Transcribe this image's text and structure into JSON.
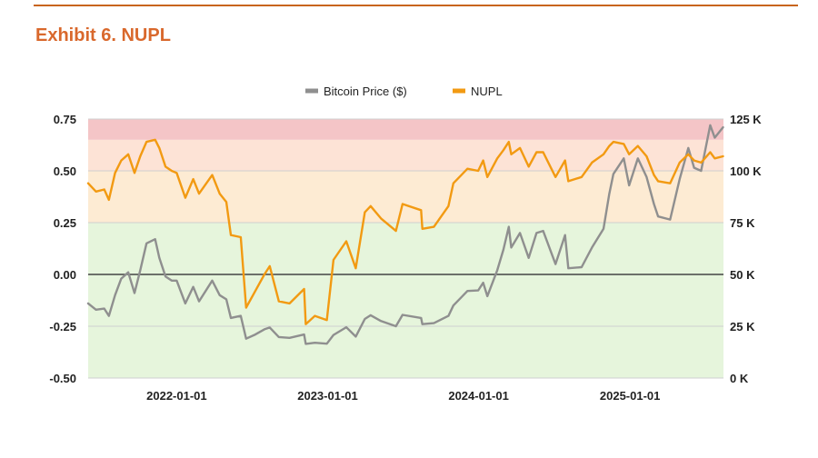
{
  "header": {
    "title": "Exhibit 6. NUPL",
    "accent_color": "#d9682c"
  },
  "chart_data": {
    "type": "line",
    "title": "",
    "xlabel": "",
    "ylabel_left": "",
    "ylabel_right": "",
    "x_ticks": [
      "2022-01-01",
      "2023-01-01",
      "2024-01-01",
      "2025-01-01"
    ],
    "xlim": [
      "2021-06-01",
      "2025-08-15"
    ],
    "y_left": {
      "range": [
        -0.5,
        0.75
      ],
      "ticks": [
        "0.75",
        "0.50",
        "0.25",
        "0.00",
        "-0.25",
        "-0.50"
      ]
    },
    "y_right": {
      "range": [
        0,
        125000
      ],
      "ticks": [
        "125 K",
        "100 K",
        "75 K",
        "50 K",
        "25 K",
        "0 K"
      ]
    },
    "bands": [
      {
        "from": -0.5,
        "to": 0.25,
        "color": "#e6f5dc"
      },
      {
        "from": 0.25,
        "to": 0.5,
        "color": "#fdebd3"
      },
      {
        "from": 0.5,
        "to": 0.65,
        "color": "#fde3d6"
      },
      {
        "from": 0.65,
        "to": 0.75,
        "color": "#f4c5c7"
      }
    ],
    "legend_position": "top-center",
    "series": [
      {
        "name": "Bitcoin Price ($)",
        "axis": "right",
        "color": "#8f8f8f",
        "points": [
          [
            "2021-06-01",
            36000
          ],
          [
            "2021-06-20",
            33000
          ],
          [
            "2021-07-10",
            33500
          ],
          [
            "2021-07-21",
            30000
          ],
          [
            "2021-08-05",
            40000
          ],
          [
            "2021-08-20",
            48000
          ],
          [
            "2021-09-06",
            51000
          ],
          [
            "2021-09-21",
            41000
          ],
          [
            "2021-10-05",
            52000
          ],
          [
            "2021-10-20",
            65000
          ],
          [
            "2021-11-10",
            67000
          ],
          [
            "2021-11-20",
            58000
          ],
          [
            "2021-12-05",
            49000
          ],
          [
            "2021-12-20",
            47000
          ],
          [
            "2022-01-01",
            47000
          ],
          [
            "2022-01-22",
            36000
          ],
          [
            "2022-02-10",
            44000
          ],
          [
            "2022-02-24",
            37000
          ],
          [
            "2022-03-28",
            47000
          ],
          [
            "2022-04-15",
            40000
          ],
          [
            "2022-05-01",
            38000
          ],
          [
            "2022-05-12",
            29000
          ],
          [
            "2022-06-05",
            30000
          ],
          [
            "2022-06-18",
            19000
          ],
          [
            "2022-07-10",
            21000
          ],
          [
            "2022-08-01",
            23500
          ],
          [
            "2022-08-14",
            24400
          ],
          [
            "2022-09-05",
            19800
          ],
          [
            "2022-10-01",
            19400
          ],
          [
            "2022-11-05",
            21000
          ],
          [
            "2022-11-09",
            16500
          ],
          [
            "2022-12-01",
            17000
          ],
          [
            "2022-12-30",
            16600
          ],
          [
            "2023-01-15",
            20800
          ],
          [
            "2023-02-15",
            24500
          ],
          [
            "2023-03-10",
            20000
          ],
          [
            "2023-04-01",
            28500
          ],
          [
            "2023-04-15",
            30300
          ],
          [
            "2023-05-10",
            27500
          ],
          [
            "2023-06-15",
            25000
          ],
          [
            "2023-07-01",
            30500
          ],
          [
            "2023-08-15",
            29000
          ],
          [
            "2023-08-18",
            26000
          ],
          [
            "2023-09-15",
            26500
          ],
          [
            "2023-10-20",
            30000
          ],
          [
            "2023-11-01",
            35000
          ],
          [
            "2023-12-05",
            42000
          ],
          [
            "2023-12-31",
            42300
          ],
          [
            "2024-01-12",
            46000
          ],
          [
            "2024-01-22",
            39500
          ],
          [
            "2024-02-15",
            52000
          ],
          [
            "2024-03-01",
            62000
          ],
          [
            "2024-03-14",
            73000
          ],
          [
            "2024-03-20",
            63000
          ],
          [
            "2024-04-10",
            70000
          ],
          [
            "2024-05-01",
            58000
          ],
          [
            "2024-05-20",
            70000
          ],
          [
            "2024-06-05",
            71000
          ],
          [
            "2024-07-05",
            55000
          ],
          [
            "2024-07-28",
            69000
          ],
          [
            "2024-08-05",
            53000
          ],
          [
            "2024-09-06",
            53500
          ],
          [
            "2024-10-01",
            63000
          ],
          [
            "2024-10-29",
            72000
          ],
          [
            "2024-11-12",
            89000
          ],
          [
            "2024-11-22",
            98500
          ],
          [
            "2024-12-17",
            106000
          ],
          [
            "2024-12-30",
            93000
          ],
          [
            "2025-01-20",
            106000
          ],
          [
            "2025-02-10",
            97000
          ],
          [
            "2025-02-28",
            84000
          ],
          [
            "2025-03-10",
            78000
          ],
          [
            "2025-04-08",
            76500
          ],
          [
            "2025-05-01",
            96000
          ],
          [
            "2025-05-22",
            111000
          ],
          [
            "2025-06-05",
            101500
          ],
          [
            "2025-06-22",
            100000
          ],
          [
            "2025-07-14",
            122000
          ],
          [
            "2025-07-25",
            116000
          ],
          [
            "2025-08-14",
            121000
          ]
        ]
      },
      {
        "name": "NUPL",
        "axis": "left",
        "color": "#f29a12",
        "points": [
          [
            "2021-06-01",
            0.44
          ],
          [
            "2021-06-20",
            0.4
          ],
          [
            "2021-07-10",
            0.41
          ],
          [
            "2021-07-21",
            0.36
          ],
          [
            "2021-08-05",
            0.49
          ],
          [
            "2021-08-20",
            0.55
          ],
          [
            "2021-09-06",
            0.58
          ],
          [
            "2021-09-21",
            0.49
          ],
          [
            "2021-10-05",
            0.57
          ],
          [
            "2021-10-20",
            0.64
          ],
          [
            "2021-11-10",
            0.65
          ],
          [
            "2021-11-20",
            0.61
          ],
          [
            "2021-12-05",
            0.52
          ],
          [
            "2021-12-20",
            0.5
          ],
          [
            "2022-01-01",
            0.49
          ],
          [
            "2022-01-22",
            0.37
          ],
          [
            "2022-02-10",
            0.46
          ],
          [
            "2022-02-24",
            0.39
          ],
          [
            "2022-03-28",
            0.48
          ],
          [
            "2022-04-15",
            0.39
          ],
          [
            "2022-05-01",
            0.35
          ],
          [
            "2022-05-12",
            0.19
          ],
          [
            "2022-06-05",
            0.18
          ],
          [
            "2022-06-18",
            -0.16
          ],
          [
            "2022-07-10",
            -0.08
          ],
          [
            "2022-08-01",
            0.0
          ],
          [
            "2022-08-14",
            0.04
          ],
          [
            "2022-09-05",
            -0.13
          ],
          [
            "2022-10-01",
            -0.14
          ],
          [
            "2022-11-05",
            -0.07
          ],
          [
            "2022-11-09",
            -0.24
          ],
          [
            "2022-12-01",
            -0.2
          ],
          [
            "2022-12-30",
            -0.22
          ],
          [
            "2023-01-15",
            0.07
          ],
          [
            "2023-02-15",
            0.16
          ],
          [
            "2023-03-10",
            0.03
          ],
          [
            "2023-04-01",
            0.3
          ],
          [
            "2023-04-15",
            0.33
          ],
          [
            "2023-05-10",
            0.27
          ],
          [
            "2023-06-15",
            0.21
          ],
          [
            "2023-07-01",
            0.34
          ],
          [
            "2023-08-15",
            0.31
          ],
          [
            "2023-08-18",
            0.22
          ],
          [
            "2023-09-15",
            0.23
          ],
          [
            "2023-10-20",
            0.33
          ],
          [
            "2023-11-01",
            0.44
          ],
          [
            "2023-12-05",
            0.51
          ],
          [
            "2023-12-31",
            0.5
          ],
          [
            "2024-01-12",
            0.55
          ],
          [
            "2024-01-22",
            0.47
          ],
          [
            "2024-02-15",
            0.56
          ],
          [
            "2024-03-01",
            0.6
          ],
          [
            "2024-03-14",
            0.64
          ],
          [
            "2024-03-20",
            0.58
          ],
          [
            "2024-04-10",
            0.61
          ],
          [
            "2024-05-01",
            0.52
          ],
          [
            "2024-05-20",
            0.59
          ],
          [
            "2024-06-05",
            0.59
          ],
          [
            "2024-07-05",
            0.47
          ],
          [
            "2024-07-28",
            0.55
          ],
          [
            "2024-08-05",
            0.45
          ],
          [
            "2024-09-06",
            0.47
          ],
          [
            "2024-10-01",
            0.54
          ],
          [
            "2024-10-29",
            0.58
          ],
          [
            "2024-11-12",
            0.62
          ],
          [
            "2024-11-22",
            0.64
          ],
          [
            "2024-12-17",
            0.63
          ],
          [
            "2024-12-30",
            0.58
          ],
          [
            "2025-01-20",
            0.62
          ],
          [
            "2025-02-10",
            0.57
          ],
          [
            "2025-02-28",
            0.48
          ],
          [
            "2025-03-10",
            0.45
          ],
          [
            "2025-04-08",
            0.44
          ],
          [
            "2025-05-01",
            0.54
          ],
          [
            "2025-05-22",
            0.58
          ],
          [
            "2025-06-05",
            0.55
          ],
          [
            "2025-06-22",
            0.54
          ],
          [
            "2025-07-14",
            0.59
          ],
          [
            "2025-07-25",
            0.56
          ],
          [
            "2025-08-14",
            0.57
          ]
        ]
      }
    ]
  }
}
